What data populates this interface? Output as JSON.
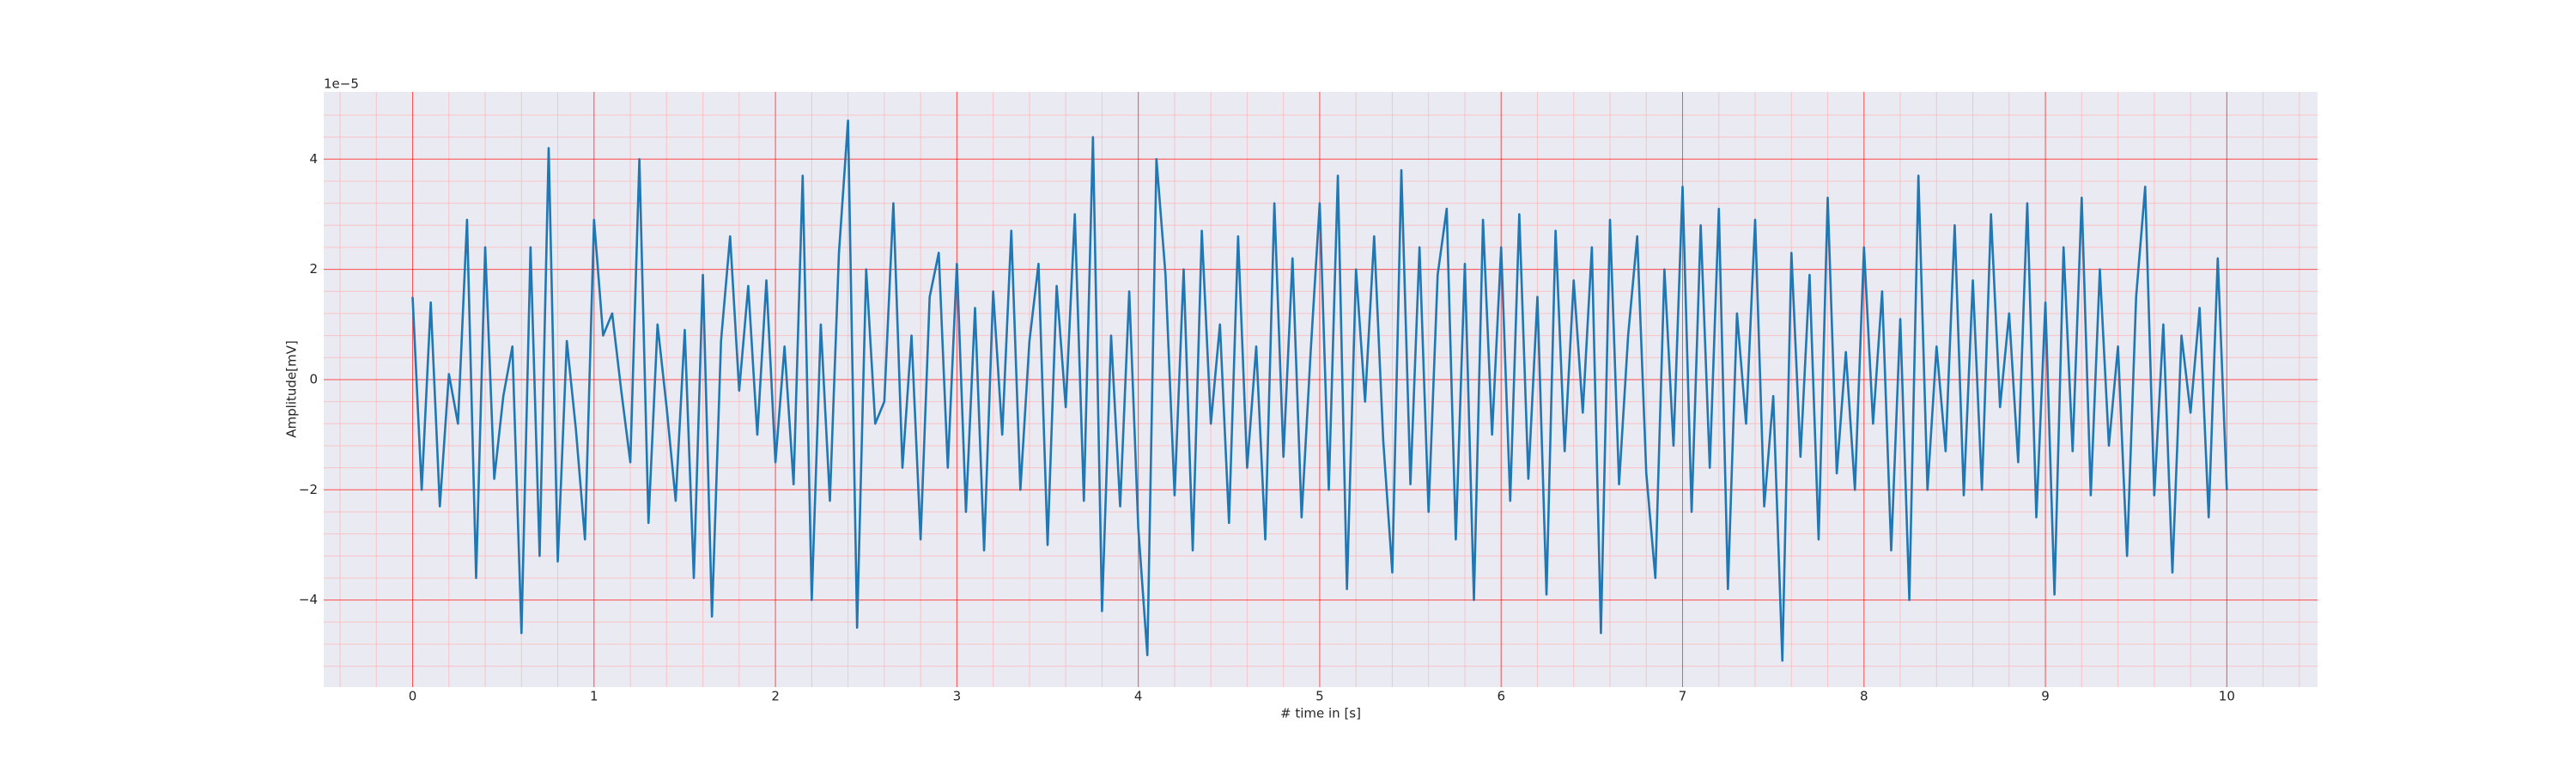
{
  "chart_data": {
    "type": "line",
    "x_label": "# time in [s]",
    "y_label": "Amplitude[mV]",
    "y_offset_label": "1e−5",
    "color": "#1f77b4",
    "background": "#eaeaf2",
    "grid": true,
    "grid_color": "#ff0000",
    "minor_grid_color": "#ffb3b3",
    "xlim": [
      -0.49,
      10.5
    ],
    "ylim": [
      -5.58,
      5.22
    ],
    "xticks": [
      0,
      1,
      2,
      3,
      4,
      5,
      6,
      7,
      8,
      9,
      10
    ],
    "yticks": [
      {
        "value": -4,
        "label": "−4"
      },
      {
        "value": -2,
        "label": "−2"
      },
      0,
      2,
      4
    ],
    "xminorticks": [
      -0.4,
      -0.2,
      0,
      0.2,
      0.4,
      0.6,
      0.8,
      1,
      1.2,
      1.4,
      1.6,
      1.8,
      2,
      2.2,
      2.4,
      2.6,
      2.8,
      3,
      3.2,
      3.4,
      3.6,
      3.8,
      4,
      4.2,
      4.4,
      4.6,
      4.8,
      5,
      5.2,
      5.4,
      5.6,
      5.8,
      6,
      6.2,
      6.4,
      6.6,
      6.8,
      7,
      7.2,
      7.4,
      7.6,
      7.8,
      8,
      8.2,
      8.4,
      8.6,
      8.8,
      9,
      9.2,
      9.4,
      9.6,
      9.8,
      10,
      10.2,
      10.4
    ],
    "yminorticks": [
      -5.2,
      -4.8,
      -4.4,
      -4,
      -3.6,
      -3.2,
      -2.8,
      -2.4,
      -2,
      -1.6,
      -1.2,
      -0.8,
      -0.4,
      0,
      0.4,
      0.8,
      1.2,
      1.6,
      2,
      2.4,
      2.8,
      3.2,
      3.6,
      4,
      4.4,
      4.8
    ],
    "x": [
      0,
      0.05,
      0.1,
      0.15,
      0.2,
      0.25,
      0.3,
      0.35,
      0.4,
      0.45,
      0.5,
      0.55,
      0.6,
      0.65,
      0.7,
      0.75,
      0.8,
      0.85,
      0.9,
      0.95,
      1,
      1.05,
      1.1,
      1.15,
      1.2,
      1.25,
      1.3,
      1.35,
      1.4,
      1.45,
      1.5,
      1.55,
      1.6,
      1.65,
      1.7,
      1.75,
      1.8,
      1.85,
      1.9,
      1.95,
      2,
      2.05,
      2.1,
      2.15,
      2.2,
      2.25,
      2.3,
      2.35,
      2.4,
      2.45,
      2.5,
      2.55,
      2.6,
      2.65,
      2.7,
      2.75,
      2.8,
      2.85,
      2.9,
      2.95,
      3,
      3.05,
      3.1,
      3.15,
      3.2,
      3.25,
      3.3,
      3.35,
      3.4,
      3.45,
      3.5,
      3.55,
      3.6,
      3.65,
      3.7,
      3.75,
      3.8,
      3.85,
      3.9,
      3.95,
      4,
      4.05,
      4.1,
      4.15,
      4.2,
      4.25,
      4.3,
      4.35,
      4.4,
      4.45,
      4.5,
      4.55,
      4.6,
      4.65,
      4.7,
      4.75,
      4.8,
      4.85,
      4.9,
      4.95,
      5,
      5.05,
      5.1,
      5.15,
      5.2,
      5.25,
      5.3,
      5.35,
      5.4,
      5.45,
      5.5,
      5.55,
      5.6,
      5.65,
      5.7,
      5.75,
      5.8,
      5.85,
      5.9,
      5.95,
      6,
      6.05,
      6.1,
      6.15,
      6.2,
      6.25,
      6.3,
      6.35,
      6.4,
      6.45,
      6.5,
      6.55,
      6.6,
      6.65,
      6.7,
      6.75,
      6.8,
      6.85,
      6.9,
      6.95,
      7,
      7.05,
      7.1,
      7.15,
      7.2,
      7.25,
      7.3,
      7.35,
      7.4,
      7.45,
      7.5,
      7.55,
      7.6,
      7.65,
      7.7,
      7.75,
      7.8,
      7.85,
      7.9,
      7.95,
      8,
      8.05,
      8.1,
      8.15,
      8.2,
      8.25,
      8.3,
      8.35,
      8.4,
      8.45,
      8.5,
      8.55,
      8.6,
      8.65,
      8.7,
      8.75,
      8.8,
      8.85,
      8.9,
      8.95,
      9,
      9.05,
      9.1,
      9.15,
      9.2,
      9.25,
      9.3,
      9.35,
      9.4,
      9.45,
      9.5,
      9.55,
      9.6,
      9.65,
      9.7,
      9.75,
      9.8,
      9.85,
      9.9,
      9.95,
      10
    ],
    "values": [
      1.5,
      -2.0,
      1.4,
      -2.3,
      0.1,
      -0.8,
      2.9,
      -3.6,
      2.4,
      -1.8,
      -0.3,
      0.6,
      -4.6,
      2.4,
      -3.2,
      4.2,
      -3.3,
      0.7,
      -0.9,
      -2.9,
      2.9,
      0.8,
      1.2,
      -0.2,
      -1.5,
      4.0,
      -2.6,
      1.0,
      -0.5,
      -2.2,
      0.9,
      -3.6,
      1.9,
      -4.3,
      0.7,
      2.6,
      -0.2,
      1.7,
      -1.0,
      1.8,
      -1.5,
      0.6,
      -1.9,
      3.7,
      -4.0,
      1.0,
      -2.2,
      2.3,
      4.7,
      -4.5,
      2.0,
      -0.8,
      -0.4,
      3.2,
      -1.6,
      0.8,
      -2.9,
      1.5,
      2.3,
      -1.6,
      2.1,
      -2.4,
      1.3,
      -3.1,
      1.6,
      -1.0,
      2.7,
      -2.0,
      0.7,
      2.1,
      -3.0,
      1.7,
      -0.5,
      3.0,
      -2.2,
      4.4,
      -4.2,
      0.8,
      -2.3,
      1.6,
      -2.7,
      -5.0,
      4.0,
      1.9,
      -2.1,
      2.0,
      -3.1,
      2.7,
      -0.8,
      1.0,
      -2.6,
      2.6,
      -1.6,
      0.6,
      -2.9,
      3.2,
      -1.4,
      2.2,
      -2.5,
      0.5,
      3.2,
      -2.0,
      3.7,
      -3.8,
      2.0,
      -0.4,
      2.6,
      -1.1,
      -3.5,
      3.8,
      -1.9,
      2.4,
      -2.4,
      1.9,
      3.1,
      -2.9,
      2.1,
      -4.0,
      2.9,
      -1.0,
      2.4,
      -2.2,
      3.0,
      -1.8,
      1.5,
      -3.9,
      2.7,
      -1.3,
      1.8,
      -0.6,
      2.4,
      -4.6,
      2.9,
      -1.9,
      0.8,
      2.6,
      -1.7,
      -3.6,
      2.0,
      -1.2,
      3.5,
      -2.4,
      2.8,
      -1.6,
      3.1,
      -3.8,
      1.2,
      -0.8,
      2.9,
      -2.3,
      -0.3,
      -5.1,
      2.3,
      -1.4,
      1.9,
      -2.9,
      3.3,
      -1.7,
      0.5,
      -2.0,
      2.4,
      -0.8,
      1.6,
      -3.1,
      1.1,
      -4.0,
      3.7,
      -2.0,
      0.6,
      -1.3,
      2.8,
      -2.1,
      1.8,
      -2.0,
      3.0,
      -0.5,
      1.2,
      -1.5,
      3.2,
      -2.5,
      1.4,
      -3.9,
      2.4,
      -1.3,
      3.3,
      -2.1,
      2.0,
      -1.2,
      0.6,
      -3.2,
      1.5,
      3.5,
      -2.1,
      1.0,
      -3.5,
      0.8,
      -0.6,
      1.3,
      -2.5,
      2.2,
      -2.0
    ]
  }
}
